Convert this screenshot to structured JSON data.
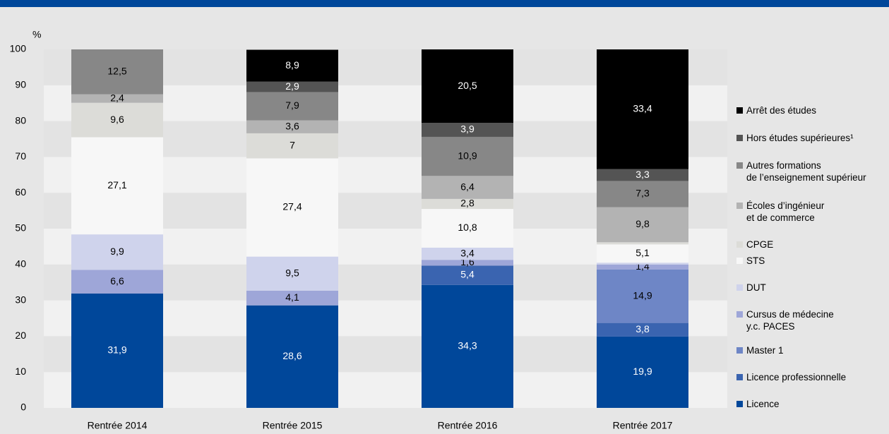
{
  "chart_data": {
    "type": "stacked_bar",
    "y_label": "%",
    "categories": [
      "Rentrée 2014",
      "Rentrée 2015",
      "Rentrée 2016",
      "Rentrée 2017"
    ],
    "ylim": [
      0,
      100
    ],
    "yticks": [
      0,
      10,
      20,
      30,
      40,
      50,
      60,
      70,
      80,
      90,
      100
    ],
    "grid": true,
    "legend": "right",
    "series": [
      {
        "name": "Licence",
        "color": "#00479a",
        "values": [
          31.9,
          28.6,
          34.3,
          19.9
        ],
        "value_labels": [
          "31,9",
          "28,6",
          "34,3",
          "19,9"
        ]
      },
      {
        "name": "Licence professionnelle",
        "color": "#3a64b0",
        "values": [
          null,
          null,
          5.4,
          3.8
        ],
        "value_labels": [
          null,
          null,
          "5,4",
          "3,8"
        ]
      },
      {
        "name": "Master 1",
        "color": "#6e86c6",
        "values": [
          null,
          null,
          null,
          14.9
        ],
        "value_labels": [
          null,
          null,
          null,
          "14,9"
        ]
      },
      {
        "name": "Cursus de médecine\ny.c. PACES",
        "color": "#9ea6d8",
        "values": [
          6.6,
          4.1,
          1.6,
          1.4
        ],
        "value_labels": [
          "6,6",
          "4,1",
          "1,6",
          "1,4"
        ]
      },
      {
        "name": "DUT",
        "color": "#cfd3ec",
        "values": [
          9.9,
          9.5,
          3.4,
          0.5
        ],
        "value_labels": [
          "9,9",
          "9,5",
          "3,4",
          null
        ]
      },
      {
        "name": "STS",
        "color": "#f7f7f7",
        "values": [
          27.1,
          27.4,
          10.8,
          5.1
        ],
        "value_labels": [
          "27,1",
          "27,4",
          "10,8",
          "5,1"
        ]
      },
      {
        "name": "CPGE",
        "color": "#dcdcd8",
        "values": [
          9.6,
          7,
          2.8,
          0.6
        ],
        "value_labels": [
          "9,6",
          "7",
          "2,8",
          null
        ]
      },
      {
        "name": "Écoles d’ingénieur\net de commerce",
        "color": "#b3b3b3",
        "values": [
          2.4,
          3.6,
          6.4,
          9.8
        ],
        "value_labels": [
          "2,4",
          "3,6",
          "6,4",
          "9,8"
        ]
      },
      {
        "name": "Autres formations\nde l’enseignement supérieur",
        "color": "#878787",
        "values": [
          12.5,
          7.9,
          10.9,
          7.3
        ],
        "value_labels": [
          "12,5",
          "7,9",
          "10,9",
          "7,3"
        ]
      },
      {
        "name": "Hors études supérieures¹",
        "color": "#545454",
        "values": [
          null,
          2.9,
          3.9,
          3.3
        ],
        "value_labels": [
          null,
          "2,9",
          "3,9",
          "3,3"
        ]
      },
      {
        "name": "Arrêt des études",
        "color": "#000000",
        "values": [
          null,
          8.9,
          20.5,
          33.4
        ],
        "value_labels": [
          null,
          "8,9",
          "20,5",
          "33,4"
        ]
      }
    ]
  }
}
